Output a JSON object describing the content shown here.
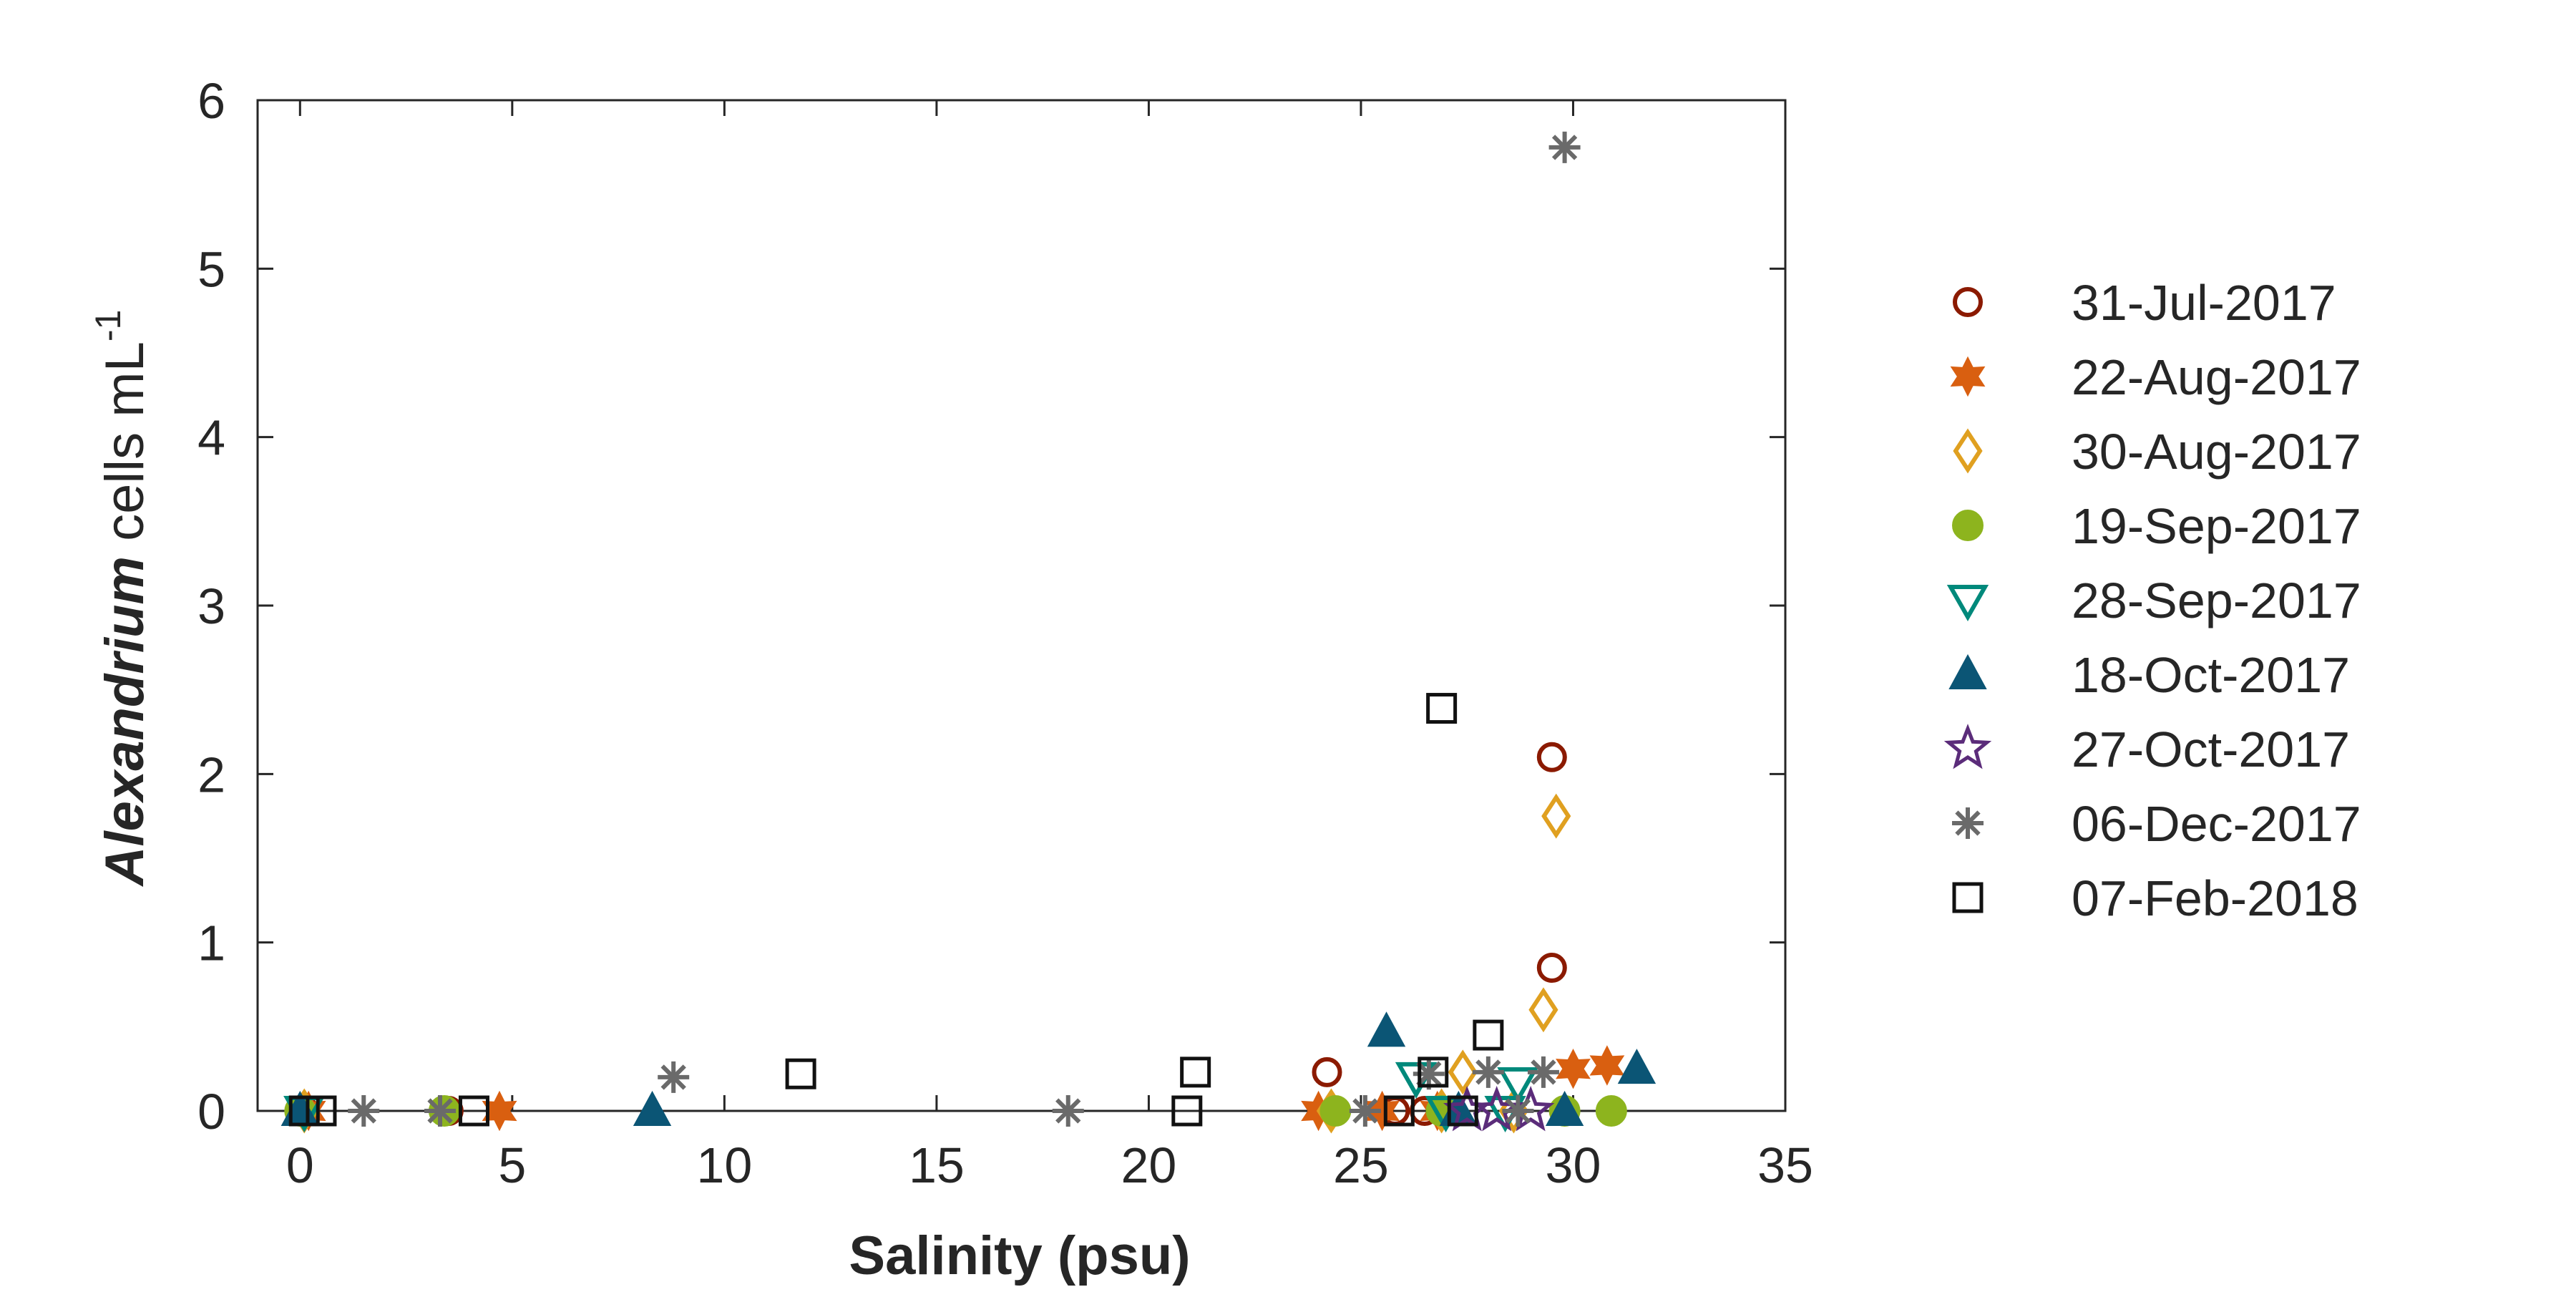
{
  "chart_data": {
    "type": "scatter",
    "xlabel": "Salinity (psu)",
    "ylabel": {
      "italic": "Alexandrium",
      "rest": " cells mL",
      "superscript": "-1"
    },
    "xlim": [
      -1,
      35
    ],
    "ylim": [
      0,
      6
    ],
    "xticks": [
      0,
      5,
      10,
      15,
      20,
      25,
      30,
      35
    ],
    "yticks": [
      0,
      1,
      2,
      3,
      4,
      5,
      6
    ],
    "grid": false,
    "legend_position": "right",
    "series": [
      {
        "name": "31-Jul-2017",
        "marker": "circle-open",
        "color": "#8B1A00",
        "points": [
          [
            0.1,
            0
          ],
          [
            3.5,
            0
          ],
          [
            24.2,
            0.23
          ],
          [
            25.8,
            0
          ],
          [
            26.5,
            0
          ],
          [
            29.5,
            2.1
          ],
          [
            29.5,
            0.85
          ]
        ]
      },
      {
        "name": "22-Aug-2017",
        "marker": "hexagram-filled",
        "color": "#D95F10",
        "points": [
          [
            0.2,
            0
          ],
          [
            4.7,
            0
          ],
          [
            24.0,
            0
          ],
          [
            25.5,
            0
          ],
          [
            26.8,
            0
          ],
          [
            30.0,
            0.25
          ],
          [
            30.8,
            0.27
          ]
        ]
      },
      {
        "name": "30-Aug-2017",
        "marker": "diamond-open",
        "color": "#E0A020",
        "points": [
          [
            0.1,
            0
          ],
          [
            24.3,
            0
          ],
          [
            26.9,
            0
          ],
          [
            27.4,
            0.23
          ],
          [
            29.3,
            0.6
          ],
          [
            29.6,
            1.75
          ],
          [
            28.6,
            0
          ]
        ]
      },
      {
        "name": "19-Sep-2017",
        "marker": "circle-filled",
        "color": "#8DB41E",
        "points": [
          [
            0.0,
            0
          ],
          [
            3.4,
            0
          ],
          [
            24.4,
            0
          ],
          [
            26.9,
            0
          ],
          [
            29.8,
            0
          ],
          [
            30.9,
            0
          ]
        ]
      },
      {
        "name": "28-Sep-2017",
        "marker": "triangle-down-open",
        "color": "#00897B",
        "points": [
          [
            0.1,
            0
          ],
          [
            26.3,
            0.2
          ],
          [
            28.7,
            0.17
          ],
          [
            27.0,
            0
          ],
          [
            28.4,
            0
          ]
        ]
      },
      {
        "name": "18-Oct-2017",
        "marker": "triangle-up-filled",
        "color": "#0B5575",
        "points": [
          [
            0.0,
            0
          ],
          [
            8.3,
            0
          ],
          [
            25.6,
            0.47
          ],
          [
            27.3,
            0
          ],
          [
            29.8,
            0
          ],
          [
            31.5,
            0.25
          ]
        ]
      },
      {
        "name": "27-Oct-2017",
        "marker": "pentagram-open",
        "color": "#5B2C7A",
        "points": [
          [
            27.5,
            0
          ],
          [
            28.2,
            0
          ],
          [
            29.0,
            0
          ]
        ]
      },
      {
        "name": "06-Dec-2017",
        "marker": "asterisk",
        "color": "#6A6A6A",
        "points": [
          [
            1.5,
            0
          ],
          [
            3.3,
            0
          ],
          [
            8.8,
            0.2
          ],
          [
            18.1,
            0
          ],
          [
            25.1,
            0
          ],
          [
            26.6,
            0.22
          ],
          [
            28.0,
            0.23
          ],
          [
            29.3,
            0.23
          ],
          [
            28.7,
            0
          ],
          [
            29.8,
            5.72
          ]
        ]
      },
      {
        "name": "07-Feb-2018",
        "marker": "square-open",
        "color": "#111111",
        "points": [
          [
            0.1,
            0
          ],
          [
            0.5,
            0
          ],
          [
            4.1,
            0
          ],
          [
            11.8,
            0.22
          ],
          [
            20.9,
            0
          ],
          [
            21.1,
            0.23
          ],
          [
            25.9,
            0
          ],
          [
            26.7,
            0.23
          ],
          [
            26.9,
            2.39
          ],
          [
            27.4,
            0
          ],
          [
            28.0,
            0.45
          ]
        ]
      }
    ]
  }
}
